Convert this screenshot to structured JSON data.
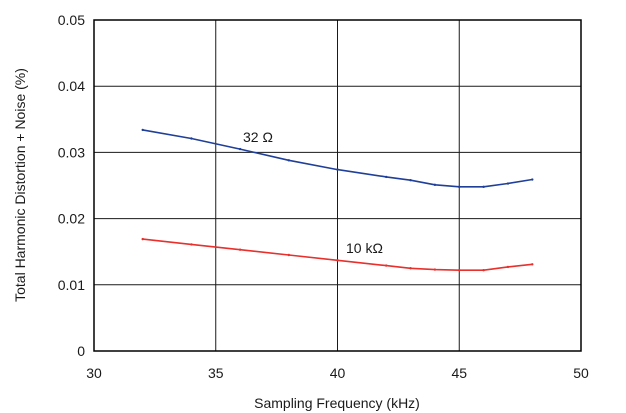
{
  "chart_data": {
    "type": "line",
    "xlabel": "Sampling Frequency (kHz)",
    "ylabel": "Total Harmonic Distortion + Noise (%)",
    "xlim": [
      30,
      50
    ],
    "ylim": [
      0,
      0.05
    ],
    "x_ticks": [
      "30",
      "35",
      "40",
      "45",
      "50"
    ],
    "y_ticks": [
      "0",
      "0.01",
      "0.02",
      "0.03",
      "0.04",
      "0.05"
    ],
    "grid": true,
    "series": [
      {
        "name": "32 Ω",
        "color": "#1f3f99",
        "x": [
          32,
          34,
          36,
          38,
          40,
          42,
          43,
          44,
          45,
          46,
          47,
          48
        ],
        "y": [
          0.0334,
          0.0321,
          0.0305,
          0.0288,
          0.0274,
          0.0263,
          0.0258,
          0.0251,
          0.0248,
          0.0248,
          0.0253,
          0.0259
        ]
      },
      {
        "name": "10 kΩ",
        "color": "#e8302c",
        "x": [
          32,
          34,
          36,
          38,
          40,
          42,
          43,
          44,
          45,
          46,
          47,
          48
        ],
        "y": [
          0.0169,
          0.0161,
          0.0153,
          0.0145,
          0.0137,
          0.0129,
          0.0125,
          0.0123,
          0.0122,
          0.0122,
          0.0127,
          0.0131
        ]
      }
    ]
  }
}
